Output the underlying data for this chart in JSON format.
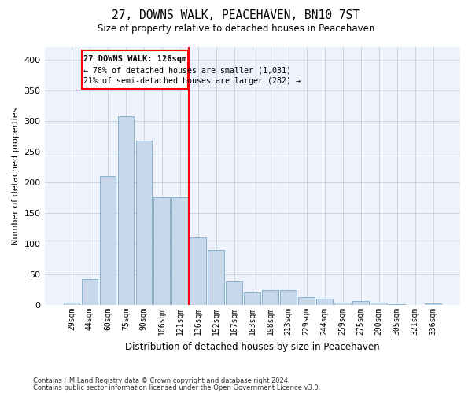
{
  "title": "27, DOWNS WALK, PEACEHAVEN, BN10 7ST",
  "subtitle": "Size of property relative to detached houses in Peacehaven",
  "xlabel": "Distribution of detached houses by size in Peacehaven",
  "ylabel": "Number of detached properties",
  "bar_color": "#c8d8eb",
  "bar_edge_color": "#7aaac8",
  "categories": [
    "29sqm",
    "44sqm",
    "60sqm",
    "75sqm",
    "90sqm",
    "106sqm",
    "121sqm",
    "136sqm",
    "152sqm",
    "167sqm",
    "183sqm",
    "198sqm",
    "213sqm",
    "229sqm",
    "244sqm",
    "259sqm",
    "275sqm",
    "290sqm",
    "305sqm",
    "321sqm",
    "336sqm"
  ],
  "values": [
    4,
    42,
    210,
    308,
    268,
    176,
    176,
    110,
    90,
    38,
    21,
    25,
    25,
    13,
    10,
    4,
    6,
    4,
    2,
    0,
    3
  ],
  "ylim": [
    0,
    420
  ],
  "yticks": [
    0,
    50,
    100,
    150,
    200,
    250,
    300,
    350,
    400
  ],
  "vline_index": 6.5,
  "annotation_title": "27 DOWNS WALK: 126sqm",
  "annotation_line1": "← 78% of detached houses are smaller (1,031)",
  "annotation_line2": "21% of semi-detached houses are larger (282) →",
  "footnote1": "Contains HM Land Registry data © Crown copyright and database right 2024.",
  "footnote2": "Contains public sector information licensed under the Open Government Licence v3.0.",
  "background_color": "#eef2fb",
  "grid_color": "#c5cde0"
}
